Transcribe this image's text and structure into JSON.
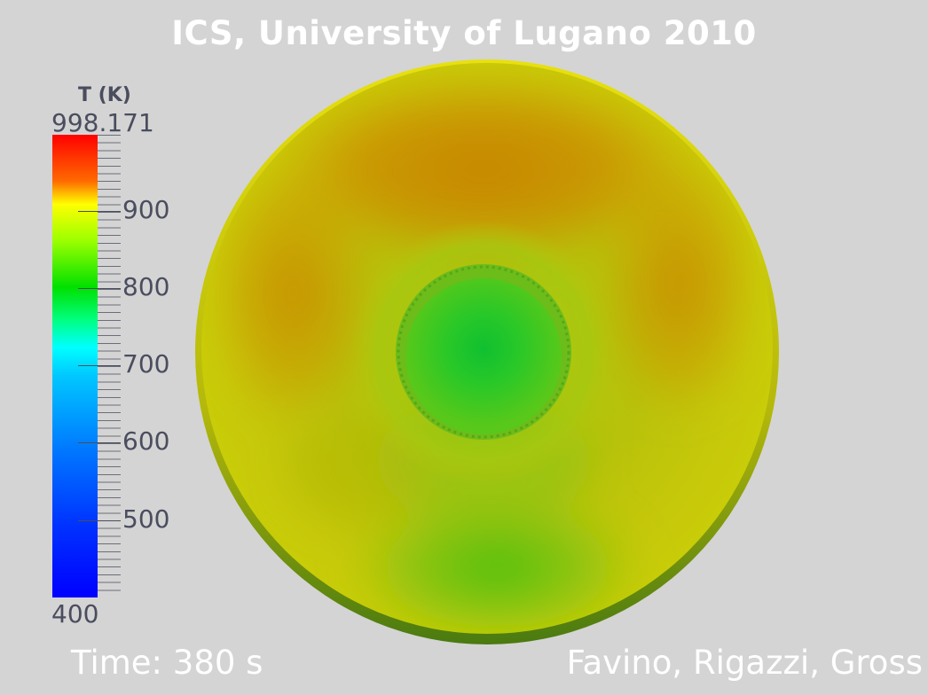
{
  "title": "ICS, University of Lugano 2010",
  "legend": {
    "title": "T (K)",
    "max_label": "998.171",
    "min_label": "400",
    "range": [
      400,
      998.171
    ],
    "ticks": [
      {
        "value": 900,
        "label": "900"
      },
      {
        "value": 800,
        "label": "800"
      },
      {
        "value": 700,
        "label": "700"
      },
      {
        "value": 600,
        "label": "600"
      },
      {
        "value": 500,
        "label": "500"
      }
    ]
  },
  "time_label": "Time: 380 s",
  "authors_label": "Favino, Rigazzi, Gross",
  "colors": {
    "background": "#d4d4d4",
    "label_text": "#4a4d5e",
    "overlay_text": "#ffffff"
  }
}
